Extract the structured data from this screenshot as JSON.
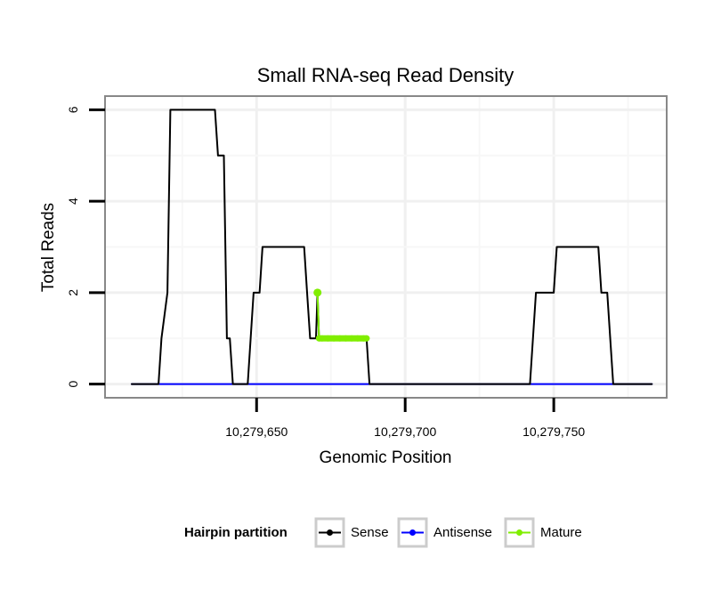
{
  "chart_data": {
    "type": "line",
    "title": "Small RNA-seq Read Density",
    "xlabel": "Genomic Position",
    "ylabel": "Total Reads",
    "xlim": [
      10279599,
      10279788
    ],
    "ylim": [
      -0.3,
      6.3
    ],
    "xticks": [
      {
        "value": 10279650,
        "label": "10,279,650"
      },
      {
        "value": 10279700,
        "label": "10,279,700"
      },
      {
        "value": 10279750,
        "label": "10,279,750"
      }
    ],
    "yticks": [
      {
        "value": 0,
        "label": "0"
      },
      {
        "value": 2,
        "label": "2"
      },
      {
        "value": 4,
        "label": "4"
      },
      {
        "value": 6,
        "label": "6"
      }
    ],
    "grid": true,
    "legend": {
      "title": "Hairpin partition",
      "position": "bottom"
    },
    "series": [
      {
        "name": "Sense",
        "color": "#000000",
        "x": [
          10279608,
          10279617,
          10279618,
          10279620,
          10279621,
          10279636,
          10279637,
          10279639,
          10279640,
          10279641,
          10279642,
          10279643,
          10279644,
          10279647,
          10279648,
          10279649,
          10279650,
          10279651,
          10279652,
          10279666,
          10279667,
          10279668,
          10279669,
          10279670,
          10279670.5,
          10279671,
          10279672,
          10279687,
          10279688,
          10279742,
          10279744,
          10279750,
          10279751,
          10279765,
          10279766,
          10279768,
          10279770,
          10279783
        ],
        "values": [
          0,
          0,
          1,
          2,
          6,
          6,
          5,
          5,
          1,
          1,
          0,
          0,
          0,
          0,
          1,
          2,
          2,
          2,
          3,
          3,
          2,
          1,
          1,
          1,
          2,
          1,
          1,
          1,
          0,
          0,
          2,
          2,
          3,
          3,
          2,
          2,
          0,
          0
        ]
      },
      {
        "name": "Antisense",
        "color": "#0000ff",
        "x": [
          10279608,
          10279783
        ],
        "values": [
          0,
          0
        ]
      },
      {
        "name": "Mature",
        "color": "#80ee00",
        "x": [
          10279670.5,
          10279671,
          10279672,
          10279674,
          10279676,
          10279678,
          10279680,
          10279682,
          10279684,
          10279686,
          10279687
        ],
        "values": [
          2,
          1,
          1,
          1,
          1,
          1,
          1,
          1,
          1,
          1,
          1
        ]
      }
    ]
  }
}
